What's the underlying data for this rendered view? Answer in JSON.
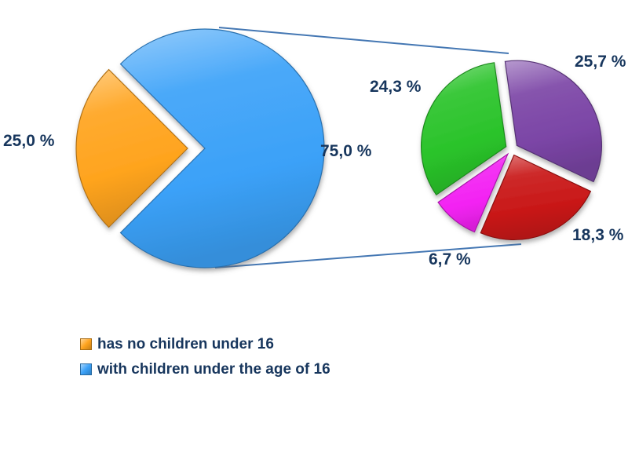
{
  "chart_data": {
    "type": "pie",
    "variant": "pie-of-pie",
    "background": "#FFFFFF",
    "label_color": "#17365D",
    "connector_color": "#4477B3",
    "main_pie": {
      "unit": "%",
      "slices": [
        {
          "label": "has no children under 16",
          "value": 25.0,
          "display": "25,0 %",
          "color": "#FFA41E"
        },
        {
          "label": "with children under the age of 16",
          "value": 75.0,
          "display": "75,0 %",
          "color": "#3BA1F8"
        }
      ]
    },
    "secondary_pie": {
      "unit": "%",
      "parent_slice": "with children under the age of 16",
      "slices": [
        {
          "value": 25.7,
          "display": "25,7 %",
          "color": "#7B45A6"
        },
        {
          "value": 18.3,
          "display": "18,3 %",
          "color": "#C91818"
        },
        {
          "value": 6.7,
          "display": "6,7 %",
          "color": "#F322F3"
        },
        {
          "value": 24.3,
          "display": "24,3 %",
          "color": "#2AC32A"
        }
      ]
    },
    "legend": [
      {
        "label": "has no children under 16",
        "color": "#FFA41E"
      },
      {
        "label": "with children under the age of 16",
        "color": "#3BA1F8"
      }
    ],
    "legend_position": "bottom-left",
    "grid": "off"
  }
}
